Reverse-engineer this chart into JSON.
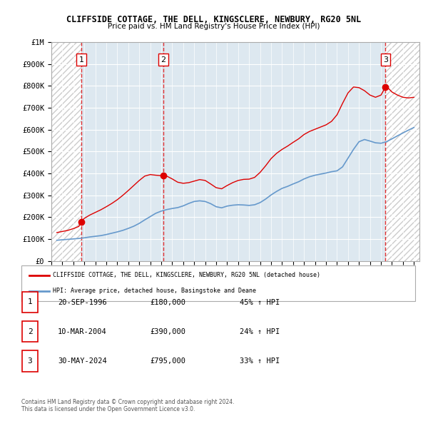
{
  "title": "CLIFFSIDE COTTAGE, THE DELL, KINGSCLERE, NEWBURY, RG20 5NL",
  "subtitle": "Price paid vs. HM Land Registry's House Price Index (HPI)",
  "ylim": [
    0,
    1000000
  ],
  "yticks": [
    0,
    100000,
    200000,
    300000,
    400000,
    500000,
    600000,
    700000,
    800000,
    900000,
    1000000
  ],
  "ytick_labels": [
    "£0",
    "£100K",
    "£200K",
    "£300K",
    "£400K",
    "£500K",
    "£600K",
    "£700K",
    "£800K",
    "£900K",
    "£1M"
  ],
  "sale_dates": [
    1996.72,
    2004.19,
    2024.41
  ],
  "sale_prices": [
    180000,
    390000,
    795000
  ],
  "sale_labels": [
    "1",
    "2",
    "3"
  ],
  "vline_color": "#dd0000",
  "sale_color": "#dd0000",
  "hpi_color": "#6699cc",
  "legend_house": "CLIFFSIDE COTTAGE, THE DELL, KINGSCLERE, NEWBURY, RG20 5NL (detached house)",
  "legend_hpi": "HPI: Average price, detached house, Basingstoke and Deane",
  "table_rows": [
    [
      "1",
      "20-SEP-1996",
      "£180,000",
      "45% ↑ HPI"
    ],
    [
      "2",
      "10-MAR-2004",
      "£390,000",
      "24% ↑ HPI"
    ],
    [
      "3",
      "30-MAY-2024",
      "£795,000",
      "33% ↑ HPI"
    ]
  ],
  "footer": "Contains HM Land Registry data © Crown copyright and database right 2024.\nThis data is licensed under the Open Government Licence v3.0.",
  "hpi_years": [
    1994.5,
    1995,
    1995.5,
    1996,
    1996.5,
    1997,
    1997.5,
    1998,
    1998.5,
    1999,
    1999.5,
    2000,
    2000.5,
    2001,
    2001.5,
    2002,
    2002.5,
    2003,
    2003.5,
    2004,
    2004.5,
    2005,
    2005.5,
    2006,
    2006.5,
    2007,
    2007.5,
    2008,
    2008.5,
    2009,
    2009.5,
    2010,
    2010.5,
    2011,
    2011.5,
    2012,
    2012.5,
    2013,
    2013.5,
    2014,
    2014.5,
    2015,
    2015.5,
    2016,
    2016.5,
    2017,
    2017.5,
    2018,
    2018.5,
    2019,
    2019.5,
    2020,
    2020.5,
    2021,
    2021.5,
    2022,
    2022.5,
    2023,
    2023.5,
    2024,
    2024.5,
    2025,
    2025.5,
    2026,
    2026.5,
    2027
  ],
  "hpi_values": [
    95000,
    97000,
    99000,
    101000,
    103000,
    106000,
    110000,
    113000,
    116000,
    121000,
    127000,
    133000,
    140000,
    149000,
    159000,
    172000,
    188000,
    203000,
    218000,
    228000,
    235000,
    240000,
    244000,
    252000,
    263000,
    272000,
    275000,
    272000,
    262000,
    248000,
    243000,
    251000,
    255000,
    257000,
    256000,
    254000,
    257000,
    267000,
    283000,
    302000,
    318000,
    332000,
    341000,
    352000,
    362000,
    375000,
    385000,
    392000,
    397000,
    402000,
    408000,
    412000,
    430000,
    470000,
    510000,
    545000,
    555000,
    548000,
    540000,
    538000,
    545000,
    558000,
    572000,
    585000,
    598000,
    610000
  ],
  "house_years": [
    1994.5,
    1995,
    1995.5,
    1996,
    1996.5,
    1996.72,
    1997,
    1997.5,
    1998,
    1998.5,
    1999,
    1999.5,
    2000,
    2000.5,
    2001,
    2001.5,
    2002,
    2002.5,
    2003,
    2003.5,
    2004,
    2004.19,
    2004.5,
    2005,
    2005.5,
    2006,
    2006.5,
    2007,
    2007.5,
    2008,
    2008.5,
    2009,
    2009.5,
    2010,
    2010.5,
    2011,
    2011.5,
    2012,
    2012.5,
    2013,
    2013.5,
    2014,
    2014.5,
    2015,
    2015.5,
    2016,
    2016.5,
    2017,
    2017.5,
    2018,
    2018.5,
    2019,
    2019.5,
    2020,
    2020.5,
    2021,
    2021.5,
    2022,
    2022.5,
    2023,
    2023.5,
    2024,
    2024.41,
    2024.5,
    2025,
    2025.5,
    2026,
    2026.5,
    2027
  ],
  "house_values": [
    130000,
    135000,
    140000,
    148000,
    158000,
    180000,
    195000,
    210000,
    222000,
    234000,
    248000,
    263000,
    280000,
    300000,
    322000,
    345000,
    368000,
    388000,
    395000,
    392000,
    390000,
    390000,
    388000,
    375000,
    360000,
    355000,
    358000,
    365000,
    372000,
    368000,
    352000,
    335000,
    330000,
    345000,
    358000,
    368000,
    373000,
    374000,
    382000,
    405000,
    435000,
    468000,
    492000,
    510000,
    525000,
    542000,
    558000,
    578000,
    592000,
    602000,
    612000,
    622000,
    638000,
    668000,
    720000,
    768000,
    795000,
    792000,
    778000,
    758000,
    748000,
    758000,
    795000,
    798000,
    772000,
    758000,
    748000,
    745000,
    748000
  ]
}
